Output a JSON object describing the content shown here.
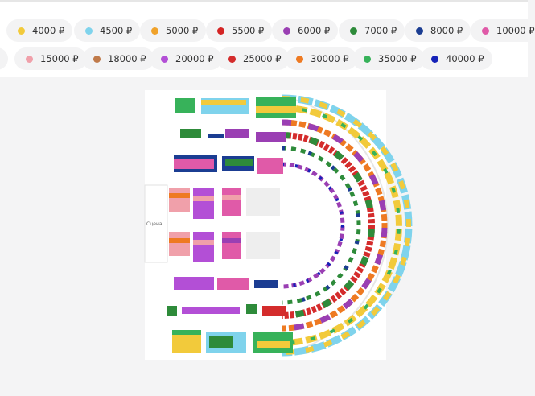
{
  "price_filters": {
    "row1": [
      {
        "label": "4000 ₽",
        "color": "#f2ca3b"
      },
      {
        "label": "4500 ₽",
        "color": "#7fd3ec"
      },
      {
        "label": "5000 ₽",
        "color": "#f0a22a"
      },
      {
        "label": "5500 ₽",
        "color": "#d42424"
      },
      {
        "label": "6000 ₽",
        "color": "#9a3fb3"
      },
      {
        "label": "7000 ₽",
        "color": "#2e8b3a"
      },
      {
        "label": "8000 ₽",
        "color": "#1b3d92"
      },
      {
        "label": "10000 ₽",
        "color": "#e05aa8"
      }
    ],
    "row2": [
      {
        "label": "15000 ₽",
        "color": "#f0a0aa"
      },
      {
        "label": "18000 ₽",
        "color": "#c07a4a"
      },
      {
        "label": "20000 ₽",
        "color": "#b34fd6"
      },
      {
        "label": "25000 ₽",
        "color": "#d42c2c"
      },
      {
        "label": "30000 ₽",
        "color": "#ee7a22"
      },
      {
        "label": "35000 ₽",
        "color": "#37b25a"
      },
      {
        "label": "40000 ₽",
        "color": "#1622b8"
      }
    ]
  },
  "map": {
    "stage_label": "Сцена"
  }
}
